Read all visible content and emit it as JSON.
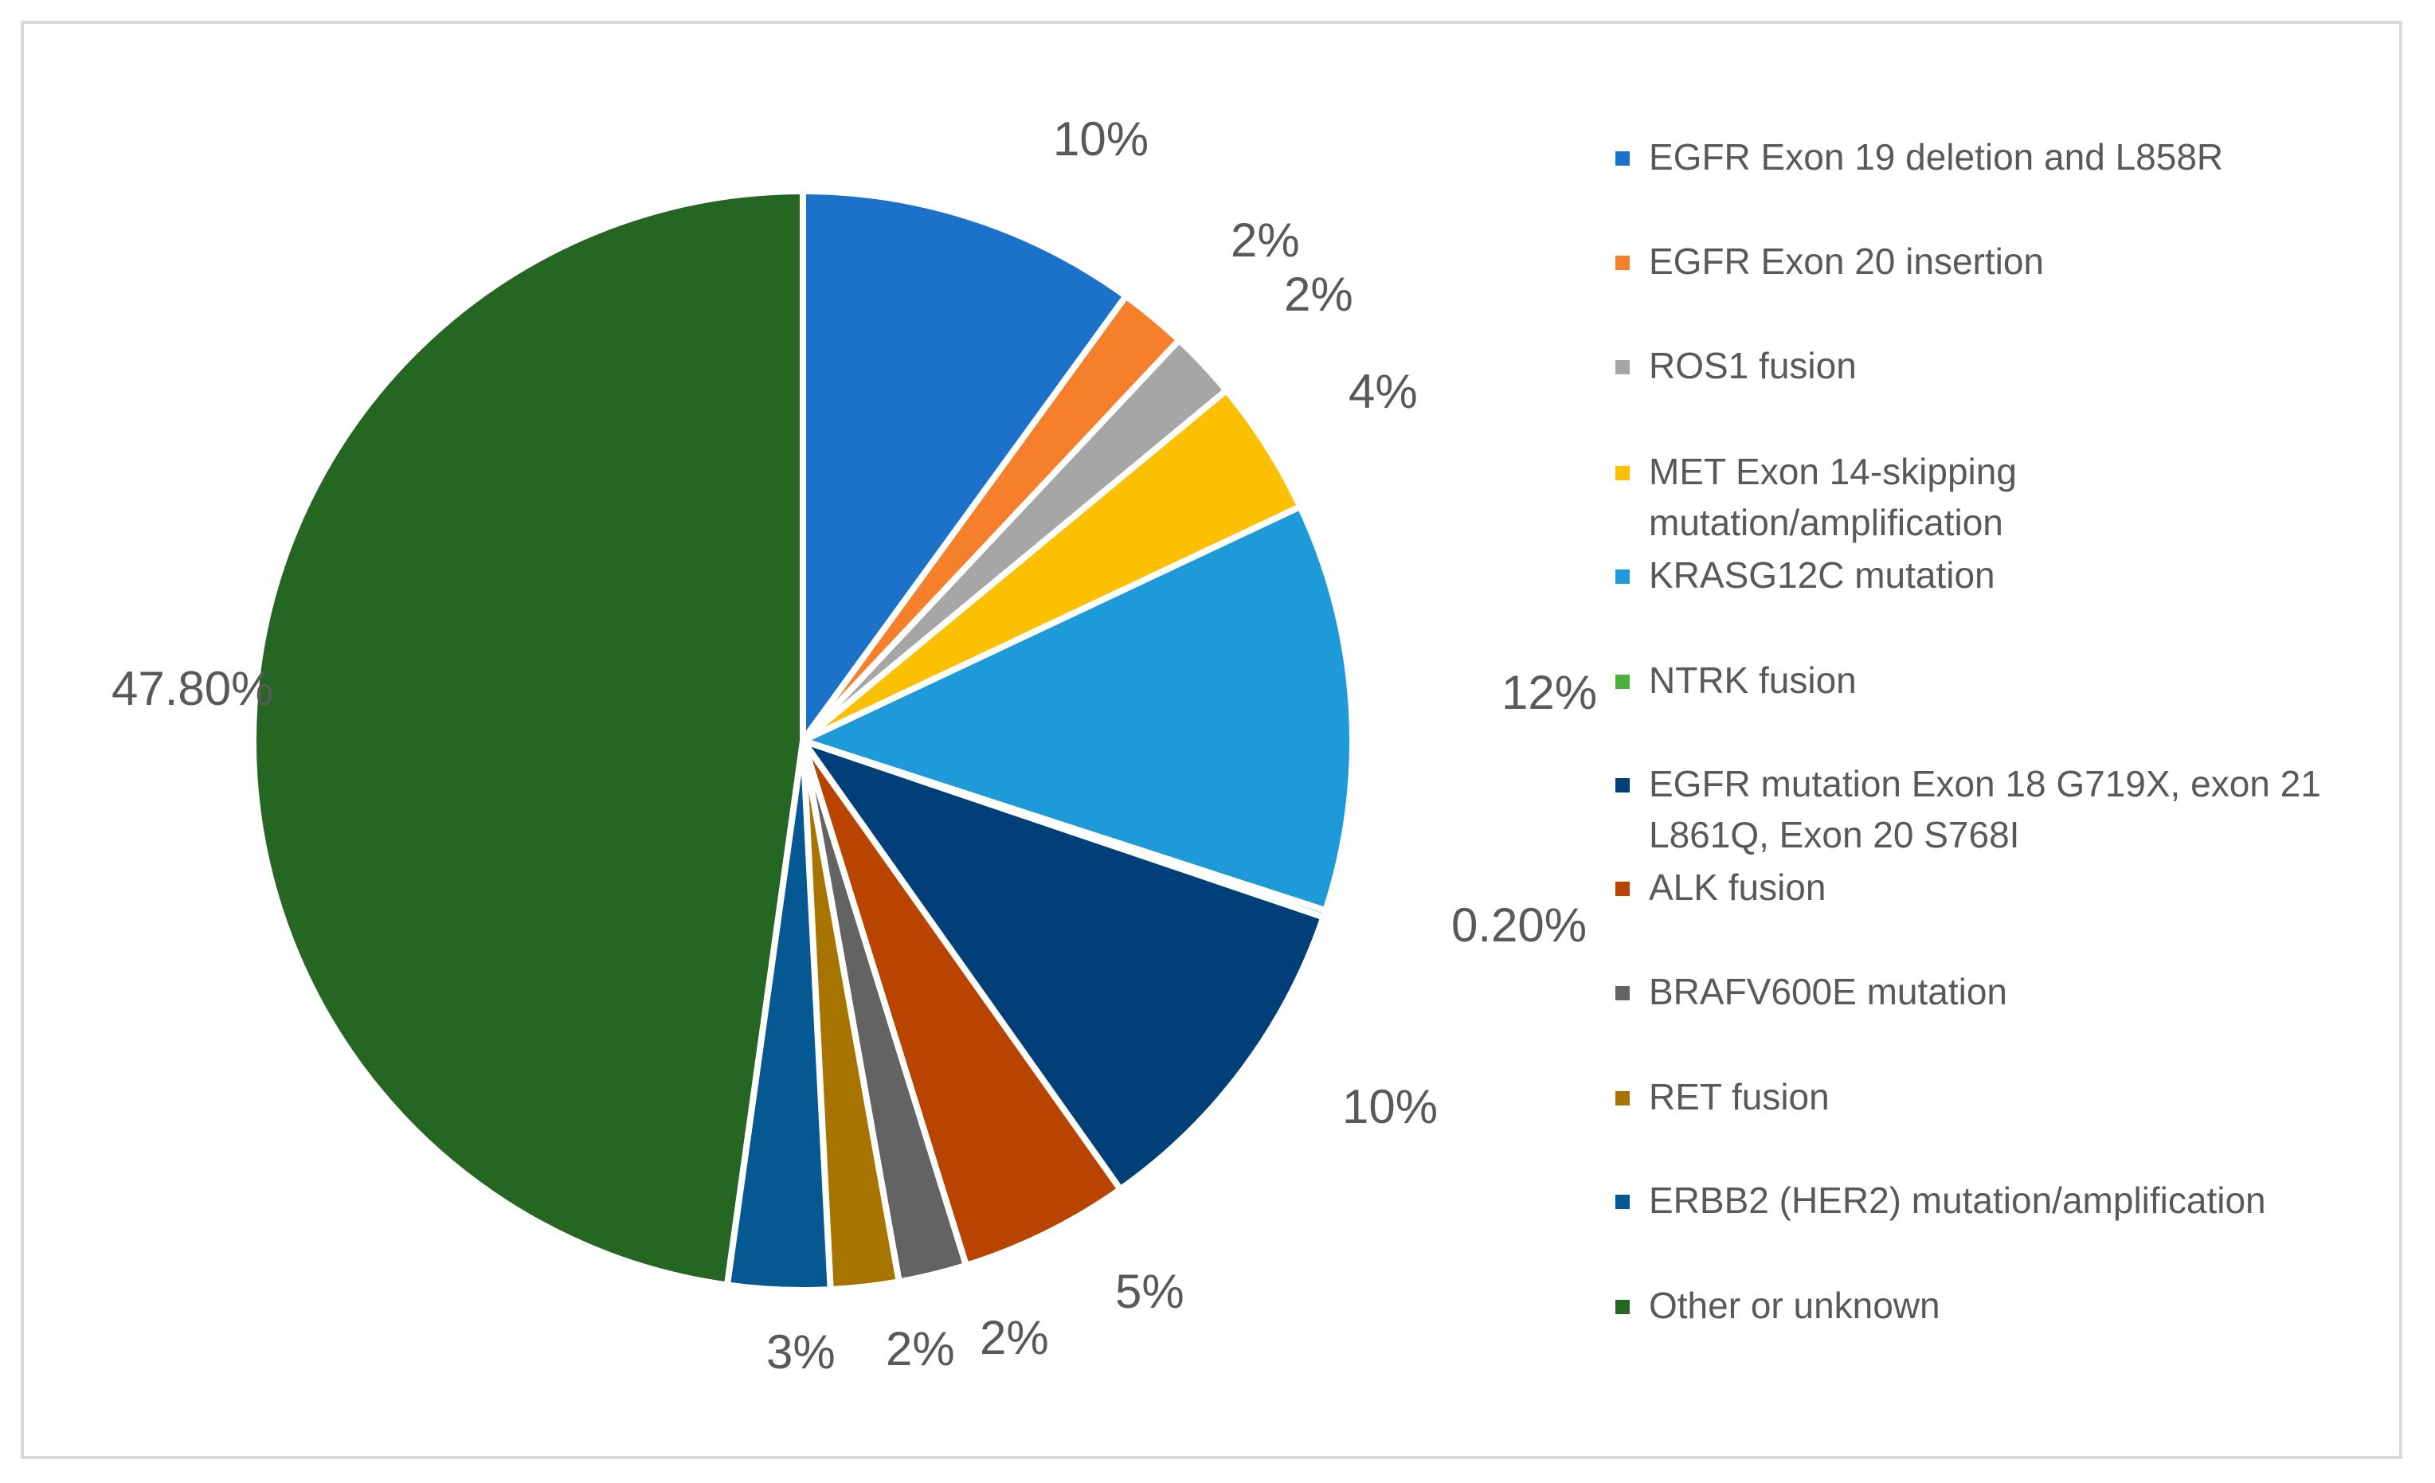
{
  "chart_data": {
    "type": "pie",
    "title": "",
    "legend_position": "right",
    "slices": [
      {
        "name": "EGFR Exon 19 deletion and  L858R",
        "value": 10,
        "label": "10%",
        "color": "#1b72c8"
      },
      {
        "name": "EGFR Exon 20 insertion",
        "value": 2,
        "label": "2%",
        "color": "#f57f2a"
      },
      {
        "name": "ROS1 fusion",
        "value": 2,
        "label": "2%",
        "color": "#a6a6a6"
      },
      {
        "name": "MET Exon 14-skipping mutation/amplification",
        "value": 4,
        "label": "4%",
        "color": "#fbc002"
      },
      {
        "name": "KRASG12C mutation",
        "value": 12,
        "label": "12%",
        "color": "#1f9ad8"
      },
      {
        "name": "NTRK fusion",
        "value": 0.2,
        "label": "0.20%",
        "color": "#4caf3c"
      },
      {
        "name": "EGFR mutation Exon 18 G719X, exon 21 L861Q, Exon 20 S768I",
        "value": 10,
        "label": "10%",
        "color": "#013f79"
      },
      {
        "name": "ALK fusion",
        "value": 5,
        "label": "5%",
        "color": "#b84400"
      },
      {
        "name": "BRAFV600E mutation",
        "value": 2,
        "label": "2%",
        "color": "#636363"
      },
      {
        "name": "RET fusion",
        "value": 2,
        "label": "2%",
        "color": "#a87400"
      },
      {
        "name": "ERBB2 (HER2) mutation/amplification",
        "value": 3,
        "label": "3%",
        "color": "#065892"
      },
      {
        "name": "Other or unknown",
        "value": 47.8,
        "label": "47.80%",
        "color": "#266623"
      }
    ]
  }
}
